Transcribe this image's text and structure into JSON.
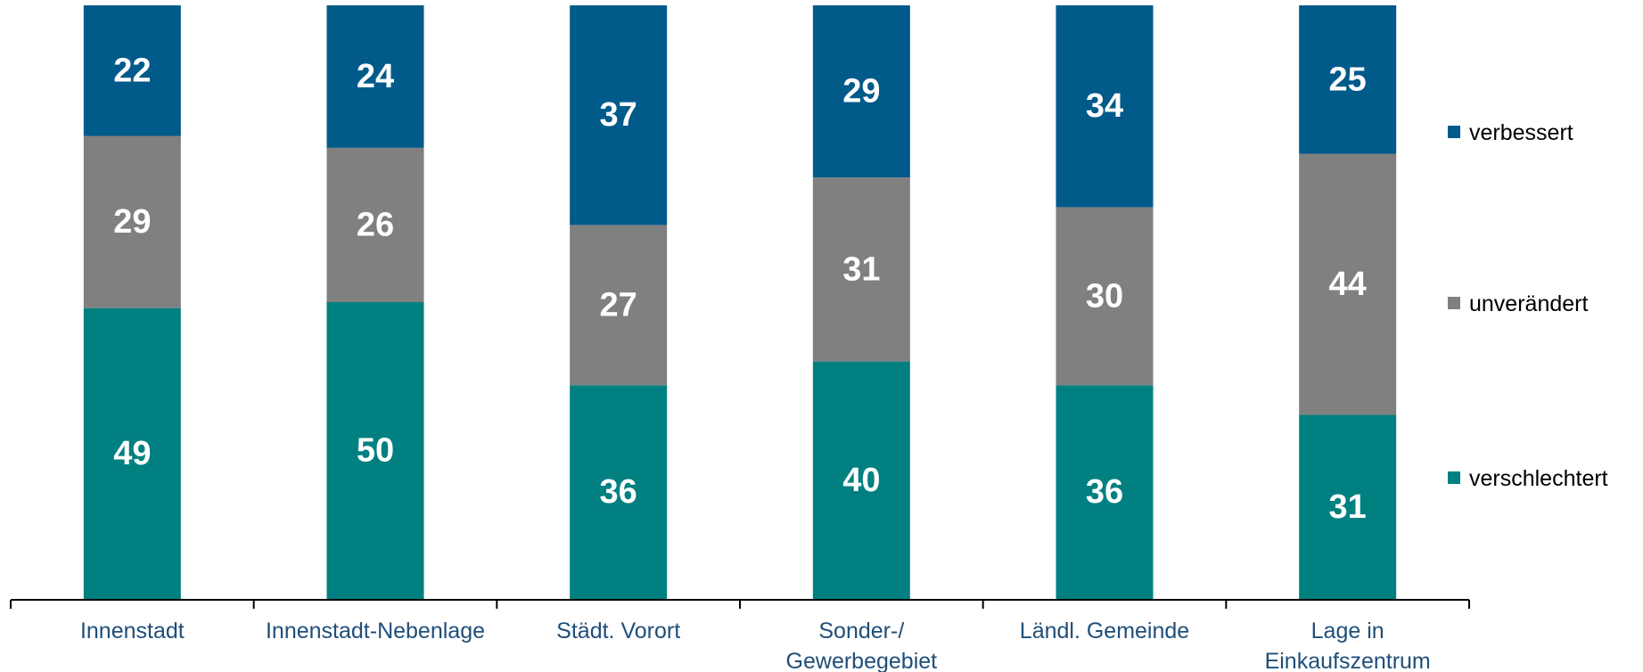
{
  "chart_data": {
    "type": "bar",
    "stacked": true,
    "percent_stacked": true,
    "categories": [
      [
        "Innenstadt"
      ],
      [
        "Innenstadt-Nebenlage"
      ],
      [
        "Städt. Vorort"
      ],
      [
        "Sonder-/",
        "Gewerbegebiet"
      ],
      [
        "Ländl. Gemeinde"
      ],
      [
        "Lage in",
        "Einkaufszentrum"
      ]
    ],
    "series": [
      {
        "name": "verschlechtert",
        "color": "#008080",
        "values": [
          49,
          50,
          36,
          40,
          36,
          31
        ]
      },
      {
        "name": "unverändert",
        "color": "#808080",
        "values": [
          29,
          26,
          27,
          31,
          30,
          44
        ]
      },
      {
        "name": "verbessert",
        "color": "#005a8a",
        "values": [
          22,
          24,
          37,
          29,
          34,
          25
        ]
      }
    ],
    "legend": {
      "position": "right",
      "order": [
        "verbessert",
        "unverändert",
        "verschlechtert"
      ]
    },
    "ylim": [
      0,
      100
    ],
    "grid": false,
    "axis_color": "#000000",
    "label_color": "#1f4e79"
  }
}
